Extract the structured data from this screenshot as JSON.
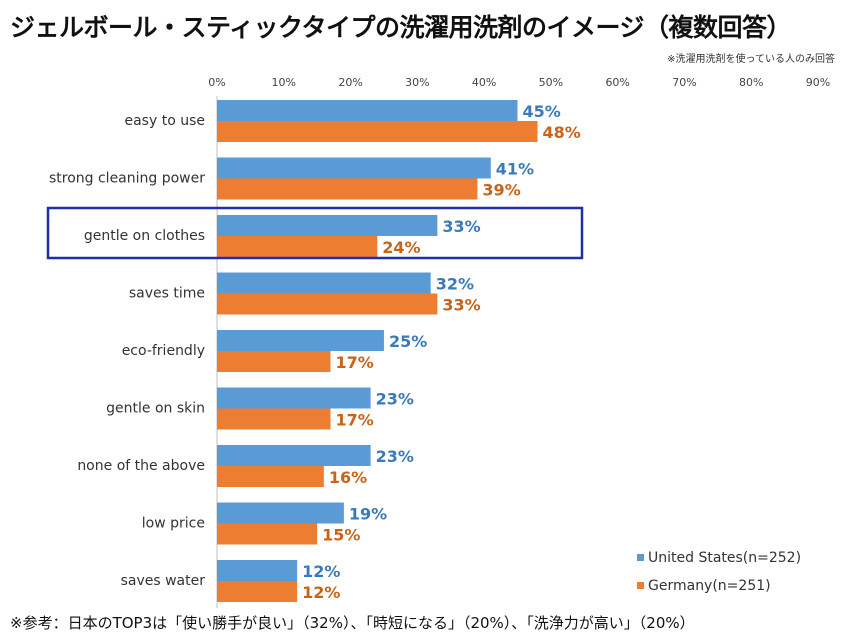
{
  "title": "ジェルボール・スティックタイプの洗濯用洗剤のイメージ（複数回答）",
  "note": "※洗濯用洗剤を使っている人のみ回答",
  "footer": "※参考：日本のTOP3は「使い勝手が良い」（32%）、「時短になる」（20%）、「洗浄力が高い」（20%）",
  "colors": {
    "us": "#5b9bd5",
    "de": "#ed7d31",
    "highlight": "#1f2fa8"
  },
  "chart_data": {
    "type": "bar",
    "orientation": "horizontal",
    "categories": [
      "easy to use",
      "strong cleaning power",
      "gentle on clothes",
      "saves time",
      "eco-friendly",
      "gentle on skin",
      "none of the above",
      "low price",
      "saves water"
    ],
    "series": [
      {
        "name": "United States(n=252)",
        "values": [
          45,
          41,
          33,
          32,
          25,
          23,
          23,
          19,
          12
        ]
      },
      {
        "name": "Germany(n=251)",
        "values": [
          48,
          39,
          24,
          33,
          17,
          17,
          16,
          15,
          12
        ]
      }
    ],
    "xlim": [
      0,
      90
    ],
    "ticks": [
      "0%",
      "10%",
      "20%",
      "30%",
      "40%",
      "50%",
      "60%",
      "70%",
      "80%",
      "90%"
    ],
    "tick_values": [
      0,
      10,
      20,
      30,
      40,
      50,
      60,
      70,
      80,
      90
    ],
    "unit": "%",
    "highlighted_category": "gentle on clothes",
    "legend_position": "bottom-right",
    "axis_position": "top"
  }
}
